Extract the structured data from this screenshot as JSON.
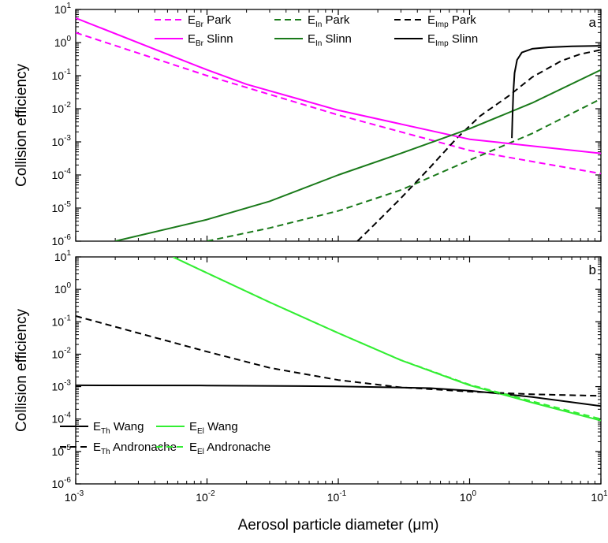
{
  "chart_data": [
    {
      "type": "line",
      "panel_label": "a",
      "ylabel": "Collision efficiency",
      "xlabel": "",
      "x_scale": "log",
      "y_scale": "log",
      "xlim": [
        0.001,
        10
      ],
      "ylim": [
        1e-06,
        10
      ],
      "x_ticks": [
        {
          "value": 0.001,
          "base": "10",
          "exp": "-3"
        },
        {
          "value": 0.01,
          "base": "10",
          "exp": "-2"
        },
        {
          "value": 0.1,
          "base": "10",
          "exp": "-1"
        },
        {
          "value": 1,
          "base": "10",
          "exp": "0"
        },
        {
          "value": 10,
          "base": "10",
          "exp": "1"
        }
      ],
      "y_ticks": [
        {
          "value": 1e-06,
          "base": "10",
          "exp": "-6"
        },
        {
          "value": 1e-05,
          "base": "10",
          "exp": "-5"
        },
        {
          "value": 0.0001,
          "base": "10",
          "exp": "-4"
        },
        {
          "value": 0.001,
          "base": "10",
          "exp": "-3"
        },
        {
          "value": 0.01,
          "base": "10",
          "exp": "-2"
        },
        {
          "value": 0.1,
          "base": "10",
          "exp": "-1"
        },
        {
          "value": 1,
          "base": "10",
          "exp": "0"
        },
        {
          "value": 10,
          "base": "10",
          "exp": "1"
        }
      ],
      "legend_position": "top",
      "series": [
        {
          "key": "EBr_Park",
          "label_main": "E",
          "label_sub": "Br",
          "label_suffix": "Park",
          "color": "#ff00ff",
          "dash": "dashed",
          "x": [
            0.001,
            0.01,
            0.1,
            1,
            10
          ],
          "y": [
            2.0,
            0.1,
            0.0065,
            0.00055,
            0.00011
          ]
        },
        {
          "key": "EIn_Park",
          "label_main": "E",
          "label_sub": "In",
          "label_suffix": "Park",
          "color": "#1a7a1a",
          "dash": "dashed",
          "x": [
            0.01,
            0.03,
            0.1,
            0.3,
            1,
            3,
            10
          ],
          "y": [
            1e-06,
            2.5e-06,
            8.2e-06,
            3.5e-05,
            0.00028,
            0.0018,
            0.02
          ]
        },
        {
          "key": "EImp_Park",
          "label_main": "E",
          "label_sub": "Imp",
          "label_suffix": "Park",
          "color": "#000000",
          "dash": "dashed",
          "x": [
            0.14,
            0.2,
            0.3,
            0.5,
            0.8,
            1.2,
            2,
            3,
            5,
            7,
            10
          ],
          "y": [
            1e-06,
            4e-06,
            2e-05,
            0.00017,
            0.0013,
            0.006,
            0.025,
            0.09,
            0.28,
            0.45,
            0.6
          ]
        },
        {
          "key": "EBr_Slinn",
          "label_main": "E",
          "label_sub": "Br",
          "label_suffix": "Slinn",
          "color": "#ff00ff",
          "dash": "solid",
          "x": [
            0.001,
            0.01,
            0.02,
            0.1,
            1,
            10
          ],
          "y": [
            5.5,
            0.15,
            0.055,
            0.009,
            0.0012,
            0.00045
          ]
        },
        {
          "key": "EIn_Slinn",
          "label_main": "E",
          "label_sub": "In",
          "label_suffix": "Slinn",
          "color": "#1a7a1a",
          "dash": "solid",
          "x": [
            0.002,
            0.01,
            0.03,
            0.1,
            0.3,
            1,
            3,
            10
          ],
          "y": [
            1e-06,
            4.5e-06,
            1.6e-05,
            0.0001,
            0.00045,
            0.0025,
            0.015,
            0.15
          ]
        },
        {
          "key": "EImp_Slinn",
          "label_main": "E",
          "label_sub": "Imp",
          "label_suffix": "Slinn",
          "color": "#000000",
          "dash": "solid",
          "x": [
            2.1,
            2.12,
            2.15,
            2.2,
            2.3,
            2.5,
            3,
            4,
            6,
            10
          ],
          "y": [
            0.0013,
            0.005,
            0.03,
            0.12,
            0.3,
            0.5,
            0.65,
            0.72,
            0.77,
            0.8
          ]
        }
      ]
    },
    {
      "type": "line",
      "panel_label": "b",
      "ylabel": "Collision efficiency",
      "xlabel": "Aerosol particle diameter (μm)",
      "x_scale": "log",
      "y_scale": "log",
      "xlim": [
        0.001,
        10
      ],
      "ylim": [
        1e-06,
        10
      ],
      "x_ticks": [
        {
          "value": 0.001,
          "base": "10",
          "exp": "-3"
        },
        {
          "value": 0.01,
          "base": "10",
          "exp": "-2"
        },
        {
          "value": 0.1,
          "base": "10",
          "exp": "-1"
        },
        {
          "value": 1,
          "base": "10",
          "exp": "0"
        },
        {
          "value": 10,
          "base": "10",
          "exp": "1"
        }
      ],
      "y_ticks": [
        {
          "value": 1e-06,
          "base": "10",
          "exp": "-6"
        },
        {
          "value": 1e-05,
          "base": "10",
          "exp": "-5"
        },
        {
          "value": 0.0001,
          "base": "10",
          "exp": "-4"
        },
        {
          "value": 0.001,
          "base": "10",
          "exp": "-3"
        },
        {
          "value": 0.01,
          "base": "10",
          "exp": "-2"
        },
        {
          "value": 0.1,
          "base": "10",
          "exp": "-1"
        },
        {
          "value": 1,
          "base": "10",
          "exp": "0"
        },
        {
          "value": 10,
          "base": "10",
          "exp": "1"
        }
      ],
      "legend_position": "bottom-left",
      "series": [
        {
          "key": "ETh_Wang",
          "label_main": "E",
          "label_sub": "Th",
          "label_suffix": "Wang",
          "color": "#000000",
          "dash": "solid",
          "x": [
            0.001,
            0.01,
            0.1,
            0.5,
            1,
            3,
            10
          ],
          "y": [
            0.0011,
            0.00108,
            0.00102,
            0.0009,
            0.00075,
            0.00048,
            0.00025
          ]
        },
        {
          "key": "EEl_Wang",
          "label_main": "E",
          "label_sub": "El",
          "label_suffix": "Wang",
          "color": "#33ee33",
          "dash": "solid",
          "x": [
            0.0055,
            0.01,
            0.03,
            0.1,
            0.3,
            1,
            3,
            10
          ],
          "y": [
            10,
            3.2,
            0.4,
            0.045,
            0.0065,
            0.0011,
            0.00032,
            9e-05
          ]
        },
        {
          "key": "ETh_Andronache",
          "label_main": "E",
          "label_sub": "Th",
          "label_suffix": "Andronache",
          "color": "#000000",
          "dash": "dashed",
          "x": [
            0.001,
            0.003,
            0.01,
            0.03,
            0.1,
            0.3,
            1,
            3,
            10
          ],
          "y": [
            0.15,
            0.045,
            0.012,
            0.0038,
            0.0016,
            0.00095,
            0.0007,
            0.00058,
            0.00052
          ]
        },
        {
          "key": "EEl_Andronache",
          "label_main": "E",
          "label_sub": "El",
          "label_suffix": "Andronache",
          "color": "#33ee33",
          "dash": "dashed",
          "x": [
            0.0055,
            0.01,
            0.03,
            0.1,
            0.3,
            1,
            3,
            10
          ],
          "y": [
            10,
            3.2,
            0.4,
            0.045,
            0.0066,
            0.00115,
            0.00035,
            0.0001
          ]
        }
      ]
    }
  ]
}
